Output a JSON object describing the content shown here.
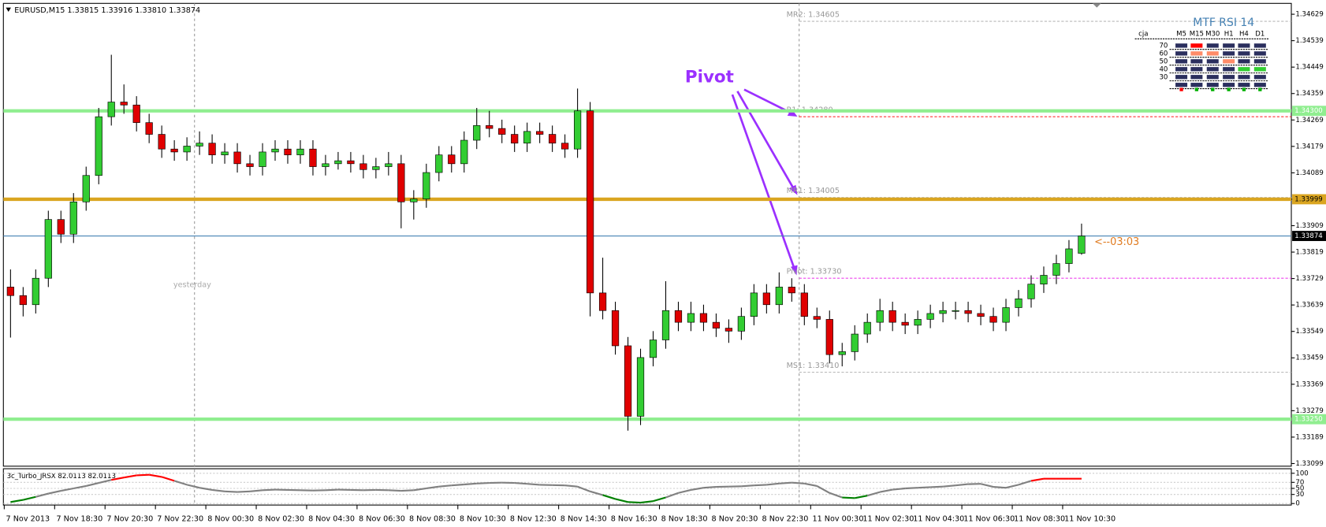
{
  "chart_data": [
    {
      "type": "candlestick",
      "title": "EURUSD,M15  1.33815 1.33916 1.33810 1.33874",
      "x_labels": [
        "7 Nov 2013",
        "7 Nov 18:30",
        "7 Nov 20:30",
        "7 Nov 22:30",
        "8 Nov 00:30",
        "8 Nov 02:30",
        "8 Nov 04:30",
        "8 Nov 06:30",
        "8 Nov 08:30",
        "8 Nov 10:30",
        "8 Nov 12:30",
        "8 Nov 14:30",
        "8 Nov 16:30",
        "8 Nov 18:30",
        "8 Nov 20:30",
        "8 Nov 22:30",
        "11 Nov 00:30",
        "11 Nov 02:30",
        "11 Nov 04:30",
        "11 Nov 06:30",
        "11 Nov 08:30",
        "11 Nov 10:30"
      ],
      "ohlc": [
        [
          1.337,
          1.3376,
          1.33528,
          1.33671
        ],
        [
          1.33671,
          1.337,
          1.336,
          1.3364
        ],
        [
          1.3364,
          1.3376,
          1.3361,
          1.3373
        ],
        [
          1.3373,
          1.3396,
          1.337,
          1.3393
        ],
        [
          1.3393,
          1.3396,
          1.3385,
          1.3388
        ],
        [
          1.3388,
          1.3402,
          1.3385,
          1.3399
        ],
        [
          1.3399,
          1.3411,
          1.3396,
          1.3408
        ],
        [
          1.3408,
          1.3431,
          1.3405,
          1.3428
        ],
        [
          1.3428,
          1.34491,
          1.3425,
          1.3433
        ],
        [
          1.3433,
          1.3439,
          1.3429,
          1.3432
        ],
        [
          1.3432,
          1.3435,
          1.3423,
          1.3426
        ],
        [
          1.3426,
          1.3429,
          1.3419,
          1.3422
        ],
        [
          1.3422,
          1.3425,
          1.3414,
          1.3417
        ],
        [
          1.3417,
          1.342,
          1.3413,
          1.3416
        ],
        [
          1.3416,
          1.3421,
          1.3413,
          1.3418
        ],
        [
          1.3418,
          1.3423,
          1.3415,
          1.3419
        ],
        [
          1.3419,
          1.3422,
          1.3412,
          1.3415
        ],
        [
          1.3415,
          1.3419,
          1.3412,
          1.3416
        ],
        [
          1.3416,
          1.3419,
          1.3409,
          1.3412
        ],
        [
          1.3412,
          1.3415,
          1.3408,
          1.3411
        ],
        [
          1.3411,
          1.3419,
          1.3408,
          1.3416
        ],
        [
          1.3416,
          1.342,
          1.3413,
          1.3417
        ],
        [
          1.3417,
          1.342,
          1.3412,
          1.3415
        ],
        [
          1.3415,
          1.342,
          1.3412,
          1.3417
        ],
        [
          1.3417,
          1.342,
          1.3408,
          1.3411
        ],
        [
          1.3411,
          1.3415,
          1.3408,
          1.3412
        ],
        [
          1.3412,
          1.3416,
          1.341,
          1.3413
        ],
        [
          1.3413,
          1.3416,
          1.3409,
          1.3412
        ],
        [
          1.3412,
          1.3415,
          1.3407,
          1.341
        ],
        [
          1.341,
          1.3414,
          1.3407,
          1.3411
        ],
        [
          1.3411,
          1.3416,
          1.3408,
          1.3412
        ],
        [
          1.3412,
          1.3415,
          1.339,
          1.3399
        ],
        [
          1.3399,
          1.3403,
          1.3393,
          1.34
        ],
        [
          1.34,
          1.3412,
          1.3397,
          1.3409
        ],
        [
          1.3409,
          1.3418,
          1.3406,
          1.3415
        ],
        [
          1.3415,
          1.3418,
          1.3409,
          1.3412
        ],
        [
          1.3412,
          1.3423,
          1.3409,
          1.342
        ],
        [
          1.342,
          1.3431,
          1.3417,
          1.3425
        ],
        [
          1.3425,
          1.343,
          1.3421,
          1.3424
        ],
        [
          1.3424,
          1.3427,
          1.3419,
          1.3422
        ],
        [
          1.3422,
          1.3425,
          1.3416,
          1.3419
        ],
        [
          1.3419,
          1.3426,
          1.3416,
          1.3423
        ],
        [
          1.3423,
          1.3426,
          1.3419,
          1.3422
        ],
        [
          1.3422,
          1.3425,
          1.3416,
          1.3419
        ],
        [
          1.3419,
          1.3422,
          1.3414,
          1.3417
        ],
        [
          1.3417,
          1.34376,
          1.3414,
          1.343
        ],
        [
          1.343,
          1.3433,
          1.336,
          1.3368
        ],
        [
          1.3368,
          1.338,
          1.3359,
          1.3362
        ],
        [
          1.3362,
          1.3365,
          1.3347,
          1.335
        ],
        [
          1.335,
          1.3353,
          1.33211,
          1.3326
        ],
        [
          1.3326,
          1.3349,
          1.3323,
          1.3346
        ],
        [
          1.3346,
          1.3355,
          1.3343,
          1.3352
        ],
        [
          1.3352,
          1.3372,
          1.3349,
          1.3362
        ],
        [
          1.3362,
          1.3365,
          1.3355,
          1.3358
        ],
        [
          1.3358,
          1.3365,
          1.3355,
          1.3361
        ],
        [
          1.3361,
          1.3364,
          1.3355,
          1.3358
        ],
        [
          1.3358,
          1.3361,
          1.3353,
          1.3356
        ],
        [
          1.3356,
          1.3359,
          1.3351,
          1.3355
        ],
        [
          1.3355,
          1.3363,
          1.3352,
          1.336
        ],
        [
          1.336,
          1.3371,
          1.3357,
          1.3368
        ],
        [
          1.3368,
          1.3371,
          1.3361,
          1.3364
        ],
        [
          1.3364,
          1.3375,
          1.3361,
          1.337
        ],
        [
          1.337,
          1.3373,
          1.3365,
          1.3368
        ],
        [
          1.3368,
          1.3371,
          1.3357,
          1.336
        ],
        [
          1.336,
          1.3363,
          1.3356,
          1.3359
        ],
        [
          1.3359,
          1.3362,
          1.3344,
          1.3347
        ],
        [
          1.3347,
          1.3351,
          1.3343,
          1.3348
        ],
        [
          1.3348,
          1.3357,
          1.3345,
          1.3354
        ],
        [
          1.3354,
          1.3361,
          1.3351,
          1.3358
        ],
        [
          1.3358,
          1.3366,
          1.3355,
          1.3362
        ],
        [
          1.3362,
          1.3365,
          1.3355,
          1.3358
        ],
        [
          1.3358,
          1.3361,
          1.3354,
          1.3357
        ],
        [
          1.3357,
          1.3362,
          1.3354,
          1.3359
        ],
        [
          1.3359,
          1.3364,
          1.3356,
          1.3361
        ],
        [
          1.3361,
          1.3365,
          1.3358,
          1.3362
        ],
        [
          1.3362,
          1.3365,
          1.3359,
          1.3362
        ],
        [
          1.3362,
          1.3365,
          1.3358,
          1.3361
        ],
        [
          1.3361,
          1.3364,
          1.3357,
          1.336
        ],
        [
          1.336,
          1.3363,
          1.3355,
          1.3358
        ],
        [
          1.3358,
          1.3366,
          1.3355,
          1.3363
        ],
        [
          1.3363,
          1.3369,
          1.336,
          1.3366
        ],
        [
          1.3366,
          1.3374,
          1.3363,
          1.3371
        ],
        [
          1.3371,
          1.3377,
          1.3368,
          1.3374
        ],
        [
          1.3374,
          1.3381,
          1.3371,
          1.3378
        ],
        [
          1.3378,
          1.3386,
          1.3375,
          1.3383
        ],
        [
          1.33815,
          1.33916,
          1.3381,
          1.33874
        ]
      ],
      "up_color": "#32cd32",
      "down_color": "#e00000",
      "wick_color": "#000000",
      "ylim": [
        1.3309,
        1.34666
      ],
      "yticks": [
        1.34629,
        1.34539,
        1.34449,
        1.34359,
        1.34269,
        1.34179,
        1.34089,
        1.33999,
        1.33909,
        1.33819,
        1.33729,
        1.33639,
        1.33549,
        1.33459,
        1.33369,
        1.33279,
        1.33189,
        1.33099
      ],
      "grid": false,
      "hlines": [
        {
          "value": 1.343,
          "label": "1.34300",
          "color": "#90ee90",
          "text_color": "#ffffff"
        },
        {
          "value": 1.33999,
          "label": "1.33999",
          "color": "#daa520",
          "text_color": "#000000"
        },
        {
          "value": 1.3325,
          "label": "1.33250",
          "color": "#90ee90",
          "text_color": "#ffffff"
        },
        {
          "value": 1.33874,
          "label": "1.33874",
          "color": "#4682b4",
          "text_color": "#ffffff"
        }
      ],
      "pivot_levels": [
        {
          "label": "MR2: 1.34605",
          "value": 1.34605,
          "color": "#b8b8b8"
        },
        {
          "label": "R1: 1.34280",
          "value": 1.3428,
          "color": "#ff3030"
        },
        {
          "label": "MR1: 1.34005",
          "value": 1.34005,
          "color": "#b8b8b8"
        },
        {
          "label": "Pivot: 1.33730",
          "value": 1.3373,
          "color": "#ee44ee"
        },
        {
          "label": "MS1: 1.33410",
          "value": 1.3341,
          "color": "#b8b8b8"
        }
      ],
      "session_label": "yesterday",
      "countdown": "<--03:03",
      "annotation": "Pivot"
    },
    {
      "type": "line",
      "title": "3c_Turbo_JRSX 82.0113 82.0113",
      "values": [
        5,
        12,
        22,
        33,
        42,
        50,
        58,
        68,
        78,
        86,
        93,
        95,
        88,
        75,
        62,
        52,
        45,
        40,
        38,
        40,
        44,
        46,
        45,
        44,
        43,
        44,
        46,
        45,
        44,
        45,
        44,
        42,
        44,
        50,
        56,
        60,
        63,
        66,
        68,
        69,
        68,
        65,
        62,
        61,
        60,
        56,
        40,
        28,
        15,
        5,
        3,
        8,
        20,
        35,
        45,
        52,
        55,
        56,
        57,
        60,
        62,
        66,
        69,
        66,
        58,
        35,
        20,
        18,
        26,
        38,
        46,
        50,
        52,
        54,
        56,
        60,
        64,
        65,
        55,
        52,
        62,
        75,
        82,
        82,
        82,
        82.0113
      ],
      "color": "#808080",
      "high_color": "#ff0000",
      "low_color": "#008000",
      "ylim": [
        -5,
        115
      ],
      "yticks": [
        100,
        70,
        50,
        30,
        0
      ],
      "grid": true
    }
  ],
  "mtf_rsi": {
    "title": "MTF RSI  14",
    "columns": [
      "cja",
      "M5",
      "M15",
      "M30",
      "H1",
      "H4",
      "D1"
    ],
    "rows": [
      {
        "level": 70,
        "cells": [
          "#2b2f5e",
          "#ff0000",
          "#2b2f5e",
          "#2b2f5e",
          "#2b2f5e",
          "#2b2f5e"
        ]
      },
      {
        "level": 60,
        "cells": [
          "#2b2f5e",
          "#ff8c69",
          "#ff8c69",
          "#2b2f5e",
          "#2b2f5e",
          "#2b2f5e"
        ]
      },
      {
        "level": 50,
        "cells": [
          "#2b2f5e",
          "#2b2f5e",
          "#2b2f5e",
          "#ff8c69",
          "#2b2f5e",
          "#2b2f5e"
        ]
      },
      {
        "level": 40,
        "cells": [
          "#2b2f5e",
          "#2b2f5e",
          "#2b2f5e",
          "#2b2f5e",
          "#32cd32",
          "#32cd32"
        ]
      },
      {
        "level": 30,
        "cells": [
          "#2b2f5e",
          "#2b2f5e",
          "#2b2f5e",
          "#2b2f5e",
          "#2b2f5e",
          "#2b2f5e"
        ]
      },
      {
        "level": null,
        "cells": [
          "#2b2f5e",
          "#2b2f5e",
          "#2b2f5e",
          "#2b2f5e",
          "#2b2f5e",
          "#2b2f5e"
        ]
      }
    ],
    "dots": [
      "#ff0000",
      "#00b000",
      "#00b000",
      "#00b000",
      "#00b000",
      "#00b000"
    ]
  }
}
